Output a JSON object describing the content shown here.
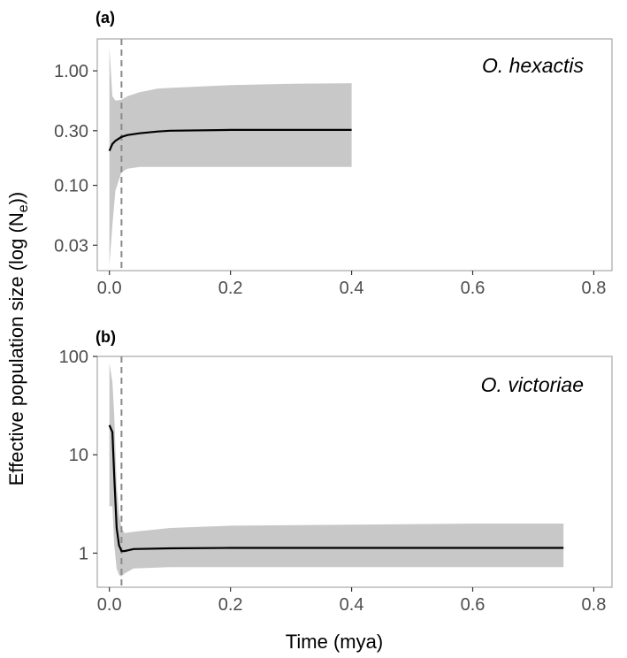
{
  "chart_data": [
    {
      "type": "line",
      "panel_label": "(a)",
      "species": "O. hexactis",
      "y_scale": "log10",
      "ylim": [
        0.018,
        1.9
      ],
      "xlim": [
        -0.02,
        0.83
      ],
      "x_ticks": [
        0.0,
        0.2,
        0.4,
        0.6,
        0.8
      ],
      "x_tick_labels": [
        "0.0",
        "0.2",
        "0.4",
        "0.6",
        "0.8"
      ],
      "y_ticks": [
        0.03,
        0.1,
        0.3,
        1.0
      ],
      "y_tick_labels": [
        "0.03",
        "0.10",
        "0.30",
        "1.00"
      ],
      "vline_x": 0.02,
      "series": [
        {
          "role": "median",
          "x": [
            0.0,
            0.005,
            0.01,
            0.02,
            0.03,
            0.05,
            0.08,
            0.1,
            0.2,
            0.3,
            0.4
          ],
          "y": [
            0.2,
            0.23,
            0.245,
            0.265,
            0.275,
            0.285,
            0.295,
            0.3,
            0.305,
            0.305,
            0.305
          ]
        },
        {
          "role": "ci_band",
          "x": [
            0.0,
            0.005,
            0.01,
            0.02,
            0.03,
            0.05,
            0.08,
            0.1,
            0.2,
            0.3,
            0.4
          ],
          "lower": [
            0.02,
            0.045,
            0.09,
            0.13,
            0.14,
            0.145,
            0.145,
            0.145,
            0.145,
            0.145,
            0.145
          ],
          "upper": [
            1.6,
            0.6,
            0.55,
            0.56,
            0.6,
            0.65,
            0.7,
            0.71,
            0.75,
            0.77,
            0.78
          ]
        }
      ],
      "grid": false
    },
    {
      "type": "line",
      "panel_label": "(b)",
      "species": "O. victoriae",
      "y_scale": "log10",
      "ylim": [
        0.45,
        100
      ],
      "xlim": [
        -0.02,
        0.83
      ],
      "x_ticks": [
        0.0,
        0.2,
        0.4,
        0.6,
        0.8
      ],
      "x_tick_labels": [
        "0.0",
        "0.2",
        "0.4",
        "0.6",
        "0.8"
      ],
      "y_ticks": [
        1,
        10,
        100
      ],
      "y_tick_labels": [
        "1",
        "10",
        "100"
      ],
      "vline_x": 0.02,
      "series": [
        {
          "role": "median",
          "x": [
            0.0,
            0.005,
            0.008,
            0.012,
            0.016,
            0.02,
            0.025,
            0.04,
            0.1,
            0.2,
            0.4,
            0.6,
            0.75
          ],
          "y": [
            20,
            17,
            6,
            1.8,
            1.2,
            1.05,
            1.05,
            1.1,
            1.12,
            1.13,
            1.13,
            1.13,
            1.13
          ]
        },
        {
          "role": "ci_band",
          "x": [
            0.0,
            0.005,
            0.008,
            0.012,
            0.016,
            0.02,
            0.025,
            0.04,
            0.1,
            0.2,
            0.4,
            0.6,
            0.75
          ],
          "lower": [
            3,
            3,
            1.2,
            0.7,
            0.6,
            0.58,
            0.62,
            0.7,
            0.72,
            0.72,
            0.72,
            0.72,
            0.72
          ],
          "upper": [
            85,
            55,
            25,
            5,
            2.5,
            1.8,
            1.6,
            1.65,
            1.8,
            1.9,
            1.95,
            2.0,
            2.0
          ]
        }
      ],
      "grid": false
    }
  ],
  "axes": {
    "y_title_main": "Effective population size (log (N",
    "y_title_sub": "e",
    "y_title_end": "))",
    "x_title": "Time (mya)"
  },
  "colors": {
    "band": "#c8c8c8",
    "line": "#000000",
    "vline": "#8a8a8a",
    "frame": "#a8a8a8",
    "tick": "#333333"
  }
}
